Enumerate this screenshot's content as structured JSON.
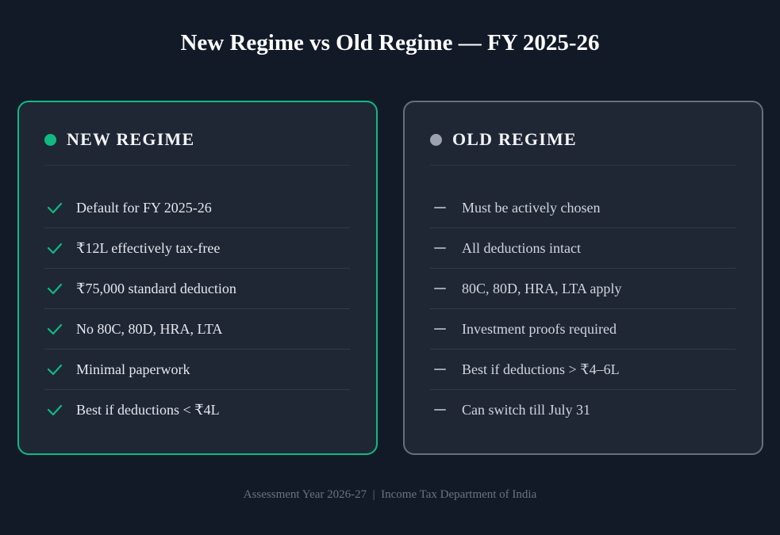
{
  "title": "New Regime vs Old Regime — FY 2025-26",
  "cards": [
    {
      "heading": "NEW REGIME",
      "items": [
        "Default for FY 2025-26",
        "₹12L effectively tax-free",
        "₹75,000 standard deduction",
        "No 80C, 80D, HRA, LTA",
        "Minimal paperwork",
        "Best if deductions < ₹4L"
      ]
    },
    {
      "heading": "OLD REGIME",
      "items": [
        "Must be actively chosen",
        "All deductions intact",
        "80C, 80D, HRA, LTA apply",
        "Investment proofs required",
        "Best if deductions > ₹4–6L",
        "Can switch till July 31"
      ]
    }
  ],
  "footer": "Assessment Year 2026-27  |  Income Tax Department of India"
}
